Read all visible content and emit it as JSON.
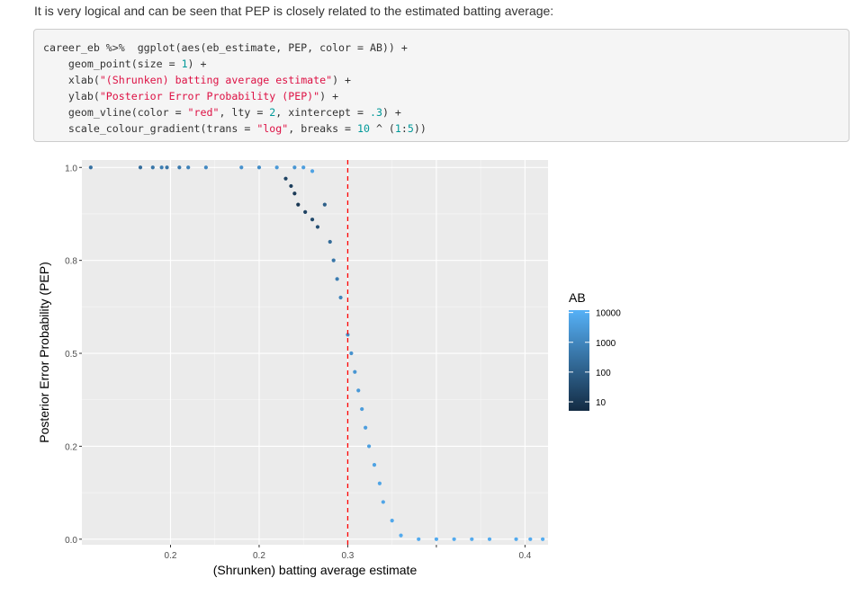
{
  "intro_text": "It is very logical and can be seen that PEP is closely related to the estimated batting average:",
  "code": {
    "lines": [
      [
        {
          "t": "career_eb %>%  ggplot(aes(eb_estimate, PEP, color = AB)) +",
          "k": "plain"
        }
      ],
      [
        {
          "t": "    geom_point(size = ",
          "k": "plain"
        },
        {
          "t": "1",
          "k": "num"
        },
        {
          "t": ") +",
          "k": "plain"
        }
      ],
      [
        {
          "t": "    xlab(",
          "k": "plain"
        },
        {
          "t": "\"(Shrunken) batting average estimate\"",
          "k": "str"
        },
        {
          "t": ") +",
          "k": "plain"
        }
      ],
      [
        {
          "t": "    ylab(",
          "k": "plain"
        },
        {
          "t": "\"Posterior Error Probability (PEP)\"",
          "k": "str"
        },
        {
          "t": ") +",
          "k": "plain"
        }
      ],
      [
        {
          "t": "    geom_vline(color = ",
          "k": "plain"
        },
        {
          "t": "\"red\"",
          "k": "str"
        },
        {
          "t": ", lty = ",
          "k": "plain"
        },
        {
          "t": "2",
          "k": "num"
        },
        {
          "t": ", xintercept = ",
          "k": "plain"
        },
        {
          "t": ".3",
          "k": "num"
        },
        {
          "t": ") +",
          "k": "plain"
        }
      ],
      [
        {
          "t": "    scale_colour_gradient(trans = ",
          "k": "plain"
        },
        {
          "t": "\"log\"",
          "k": "str"
        },
        {
          "t": ", breaks = ",
          "k": "plain"
        },
        {
          "t": "10",
          "k": "num"
        },
        {
          "t": " ^ (",
          "k": "plain"
        },
        {
          "t": "1",
          "k": "num"
        },
        {
          "t": ":",
          "k": "plain"
        },
        {
          "t": "5",
          "k": "num"
        },
        {
          "t": "))",
          "k": "plain"
        }
      ]
    ]
  },
  "colors": {
    "panel_bg": "#ebebeb",
    "grid": "#ffffff",
    "low": "#132b43",
    "high": "#56b1f7",
    "vline": "#ff0000",
    "code_string": "#dd1144",
    "code_number": "#009999"
  },
  "chart_data": {
    "type": "scatter",
    "title": "",
    "xlabel": "(Shrunken) batting average estimate",
    "ylabel": "Posterior Error Probability (PEP)",
    "xlim": [
      0.15,
      0.413
    ],
    "ylim": [
      -0.015,
      1.02
    ],
    "x_ticks": [
      0.2,
      0.25,
      0.3,
      0.35,
      0.4
    ],
    "x_tick_labels": [
      "0.2",
      "0.2",
      "0.3",
      "",
      "0.4"
    ],
    "y_ticks": [
      0,
      0.25,
      0.5,
      0.75,
      1.0
    ],
    "y_tick_labels": [
      "0.0",
      "0.2",
      "0.5",
      "0.8",
      "1.0"
    ],
    "vline": {
      "x": 0.3,
      "color": "red",
      "linetype": "dashed"
    },
    "legend": {
      "title": "AB",
      "position": "right",
      "breaks": [
        "10000",
        "1000",
        "100",
        "10"
      ],
      "trans": "log"
    },
    "points": [
      [
        0.155,
        1.0,
        300
      ],
      [
        0.183,
        1.0,
        250
      ],
      [
        0.19,
        1.0,
        400
      ],
      [
        0.195,
        1.0,
        600
      ],
      [
        0.198,
        1.0,
        350
      ],
      [
        0.205,
        1.0,
        500
      ],
      [
        0.21,
        1.0,
        800
      ],
      [
        0.22,
        1.0,
        1200
      ],
      [
        0.24,
        1.0,
        2000
      ],
      [
        0.25,
        1.0,
        1500
      ],
      [
        0.26,
        1.0,
        3000
      ],
      [
        0.27,
        1.0,
        2500
      ],
      [
        0.275,
        1.0,
        4000
      ],
      [
        0.28,
        0.99,
        5000
      ],
      [
        0.265,
        0.97,
        20
      ],
      [
        0.268,
        0.95,
        15
      ],
      [
        0.27,
        0.93,
        12
      ],
      [
        0.272,
        0.9,
        10
      ],
      [
        0.276,
        0.88,
        20
      ],
      [
        0.28,
        0.86,
        30
      ],
      [
        0.283,
        0.84,
        40
      ],
      [
        0.287,
        0.9,
        100
      ],
      [
        0.29,
        0.8,
        200
      ],
      [
        0.292,
        0.75,
        400
      ],
      [
        0.294,
        0.7,
        600
      ],
      [
        0.296,
        0.65,
        900
      ],
      [
        0.3,
        0.55,
        1500
      ],
      [
        0.302,
        0.5,
        2000
      ],
      [
        0.304,
        0.45,
        2500
      ],
      [
        0.306,
        0.4,
        3000
      ],
      [
        0.308,
        0.35,
        3500
      ],
      [
        0.31,
        0.3,
        4000
      ],
      [
        0.312,
        0.25,
        4500
      ],
      [
        0.315,
        0.2,
        5000
      ],
      [
        0.318,
        0.15,
        5500
      ],
      [
        0.32,
        0.1,
        6000
      ],
      [
        0.325,
        0.05,
        7000
      ],
      [
        0.33,
        0.01,
        8000
      ],
      [
        0.34,
        0.0,
        8000
      ],
      [
        0.35,
        0.0,
        8000
      ],
      [
        0.36,
        0.0,
        8000
      ],
      [
        0.37,
        0.0,
        8000
      ],
      [
        0.38,
        0.0,
        8000
      ],
      [
        0.395,
        0.0,
        8000
      ],
      [
        0.403,
        0.0,
        8000
      ],
      [
        0.41,
        0.0,
        9000
      ]
    ]
  }
}
